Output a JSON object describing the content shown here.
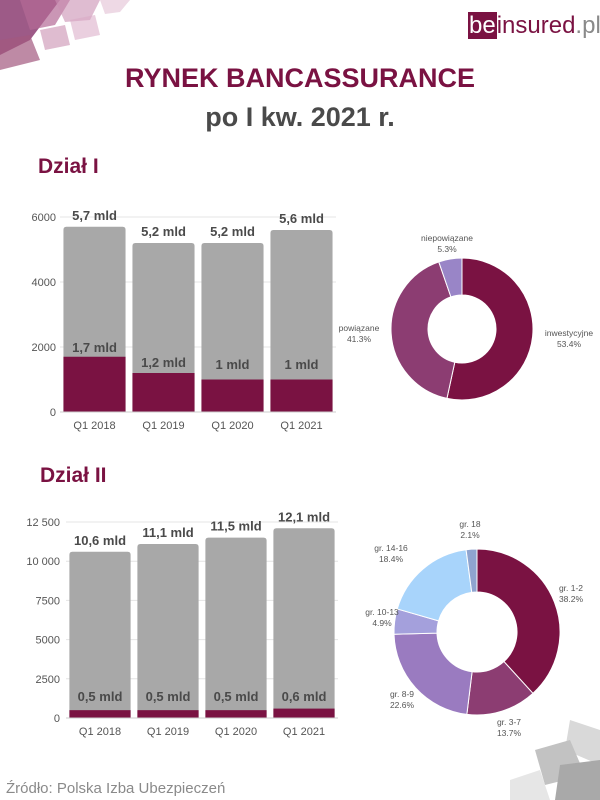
{
  "brand": {
    "logo_be": "be",
    "logo_insured": "insured",
    "logo_pl": ".pl"
  },
  "title_line1": "RYNEK BANCASSURANCE",
  "title_line2": "po I kw. 2021 r.",
  "source": "Źródło: Polska Izba Ubezpieczeń",
  "colors": {
    "primary": "#7a1242",
    "gray_bar": "#a8a8a8",
    "dark_text": "#4a4a4a"
  },
  "sections": [
    {
      "title": "Dział I",
      "bar_chart": {
        "type": "bar",
        "stacked_overlay": true,
        "categories": [
          "Q1 2018",
          "Q1 2019",
          "Q1 2020",
          "Q1 2021"
        ],
        "series": [
          {
            "values": [
              5700,
              5200,
              5200,
              5600
            ],
            "color": "#a8a8a8"
          },
          {
            "values": [
              1700,
              1200,
              1000,
              1000
            ],
            "color": "#7a1242"
          }
        ],
        "total_labels": [
          "5,7 mld",
          "5,2 mld",
          "5,2 mld",
          "5,6 mld"
        ],
        "part_labels": [
          "1,7 mld",
          "1,2 mld",
          "1 mld",
          "1 mld"
        ],
        "yticks": [
          0,
          2000,
          4000,
          6000
        ],
        "ytick_labels": [
          "0",
          "2000",
          "4000",
          "6000"
        ],
        "ylim": [
          0,
          6000
        ]
      },
      "pie_chart": {
        "type": "pie",
        "donut": true,
        "slices": [
          {
            "label": "inwestycyjne",
            "value": 53.4,
            "pct": "53.4%",
            "color": "#7a1242"
          },
          {
            "label": "powiązane",
            "value": 41.3,
            "pct": "41.3%",
            "color": "#8c3d72"
          },
          {
            "label": "niepowiązane",
            "value": 5.3,
            "pct": "5.3%",
            "color": "#9985c7"
          }
        ]
      }
    },
    {
      "title": "Dział II",
      "bar_chart": {
        "type": "bar",
        "stacked_overlay": true,
        "categories": [
          "Q1 2018",
          "Q1 2019",
          "Q1 2020",
          "Q1 2021"
        ],
        "series": [
          {
            "values": [
              10600,
              11100,
              11500,
              12100
            ],
            "color": "#a8a8a8"
          },
          {
            "values": [
              500,
              500,
              500,
              600
            ],
            "color": "#7a1242"
          }
        ],
        "total_labels": [
          "10,6 mld",
          "11,1 mld",
          "11,5 mld",
          "12,1 mld"
        ],
        "part_labels": [
          "0,5 mld",
          "0,5 mld",
          "0,5 mld",
          "0,6 mld"
        ],
        "yticks": [
          0,
          2500,
          5000,
          7500,
          10000,
          12500
        ],
        "ytick_labels": [
          "0",
          "2500",
          "5000",
          "7500",
          "10 000",
          "12 500"
        ],
        "ylim": [
          0,
          12500
        ]
      },
      "pie_chart": {
        "type": "pie",
        "donut": true,
        "slices": [
          {
            "label": "gr. 1-2",
            "value": 38.2,
            "pct": "38.2%",
            "color": "#7a1242"
          },
          {
            "label": "gr. 3-7",
            "value": 13.7,
            "pct": "13.7%",
            "color": "#8c3d72"
          },
          {
            "label": "gr. 8-9",
            "value": 22.6,
            "pct": "22.6%",
            "color": "#9a7bc0"
          },
          {
            "label": "gr. 10-13",
            "value": 4.9,
            "pct": "4.9%",
            "color": "#a4a0dc"
          },
          {
            "label": "gr. 14-16",
            "value": 18.4,
            "pct": "18.4%",
            "color": "#a8d4fb"
          },
          {
            "label": "gr. 18",
            "value": 2.1,
            "pct": "2.1%",
            "color": "#8fa4cf"
          }
        ]
      }
    }
  ]
}
